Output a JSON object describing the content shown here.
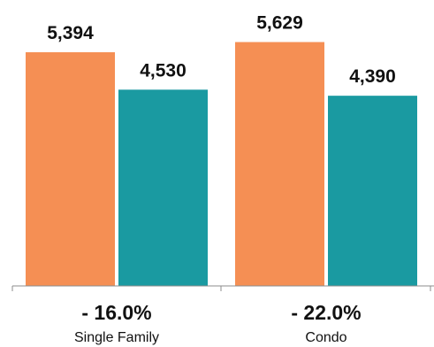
{
  "chart_data": {
    "type": "bar",
    "categories": [
      "Single Family",
      "Condo"
    ],
    "series": [
      {
        "values": [
          5394,
          5629
        ],
        "color": "#F58F54"
      },
      {
        "values": [
          4530,
          4390
        ],
        "color": "#1A9AA1"
      }
    ],
    "value_labels": [
      [
        "5,394",
        "5,629"
      ],
      [
        "4,530",
        "4,390"
      ]
    ],
    "changes": [
      "- 16.0%",
      "- 22.0%"
    ],
    "ylim": [
      0,
      6600
    ],
    "grid": false,
    "legend": "none"
  }
}
